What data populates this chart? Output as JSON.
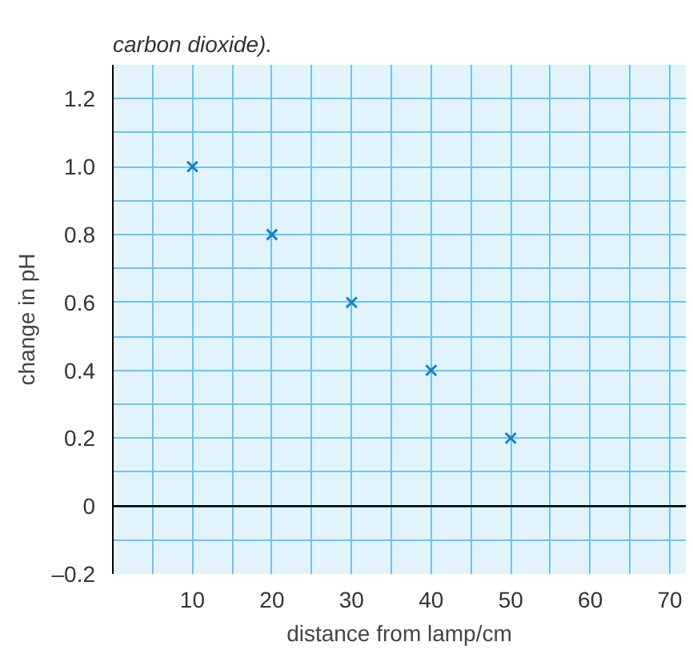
{
  "chart_data": {
    "type": "scatter",
    "xlabel": "distance from lamp/cm",
    "ylabel": "change in pH",
    "annotations": [
      "carbon dioxide)."
    ],
    "x": [
      10,
      20,
      30,
      40,
      50
    ],
    "series": [
      {
        "color": "#1a7fc4",
        "values": [
          1.0,
          0.8,
          0.6,
          0.4,
          0.2
        ]
      }
    ],
    "marker": "cross",
    "grid": true,
    "xlim": [
      0,
      72
    ],
    "ylim": [
      -0.2,
      1.3
    ],
    "xticks": [
      10,
      20,
      30,
      40,
      50,
      60,
      70
    ],
    "yticks": [
      {
        "value": -0.2,
        "label": "–0.2"
      },
      0,
      0.2,
      0.4,
      0.6,
      0.8,
      {
        "value": 1.0,
        "label": "1.0"
      },
      1.2
    ],
    "ref_lines": [
      {
        "axis": "y",
        "value": 0,
        "label": null,
        "color": "#000000"
      }
    ]
  }
}
